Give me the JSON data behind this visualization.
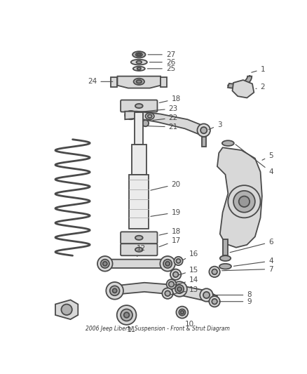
{
  "bg_color": "#ffffff",
  "line_color": "#4a4a4a",
  "part_fill": "#d8d8d8",
  "part_fill_dark": "#b0b0b0",
  "part_fill_light": "#ebebeb",
  "label_fs": 7.5,
  "lw_main": 1.3,
  "lw_thin": 0.8
}
